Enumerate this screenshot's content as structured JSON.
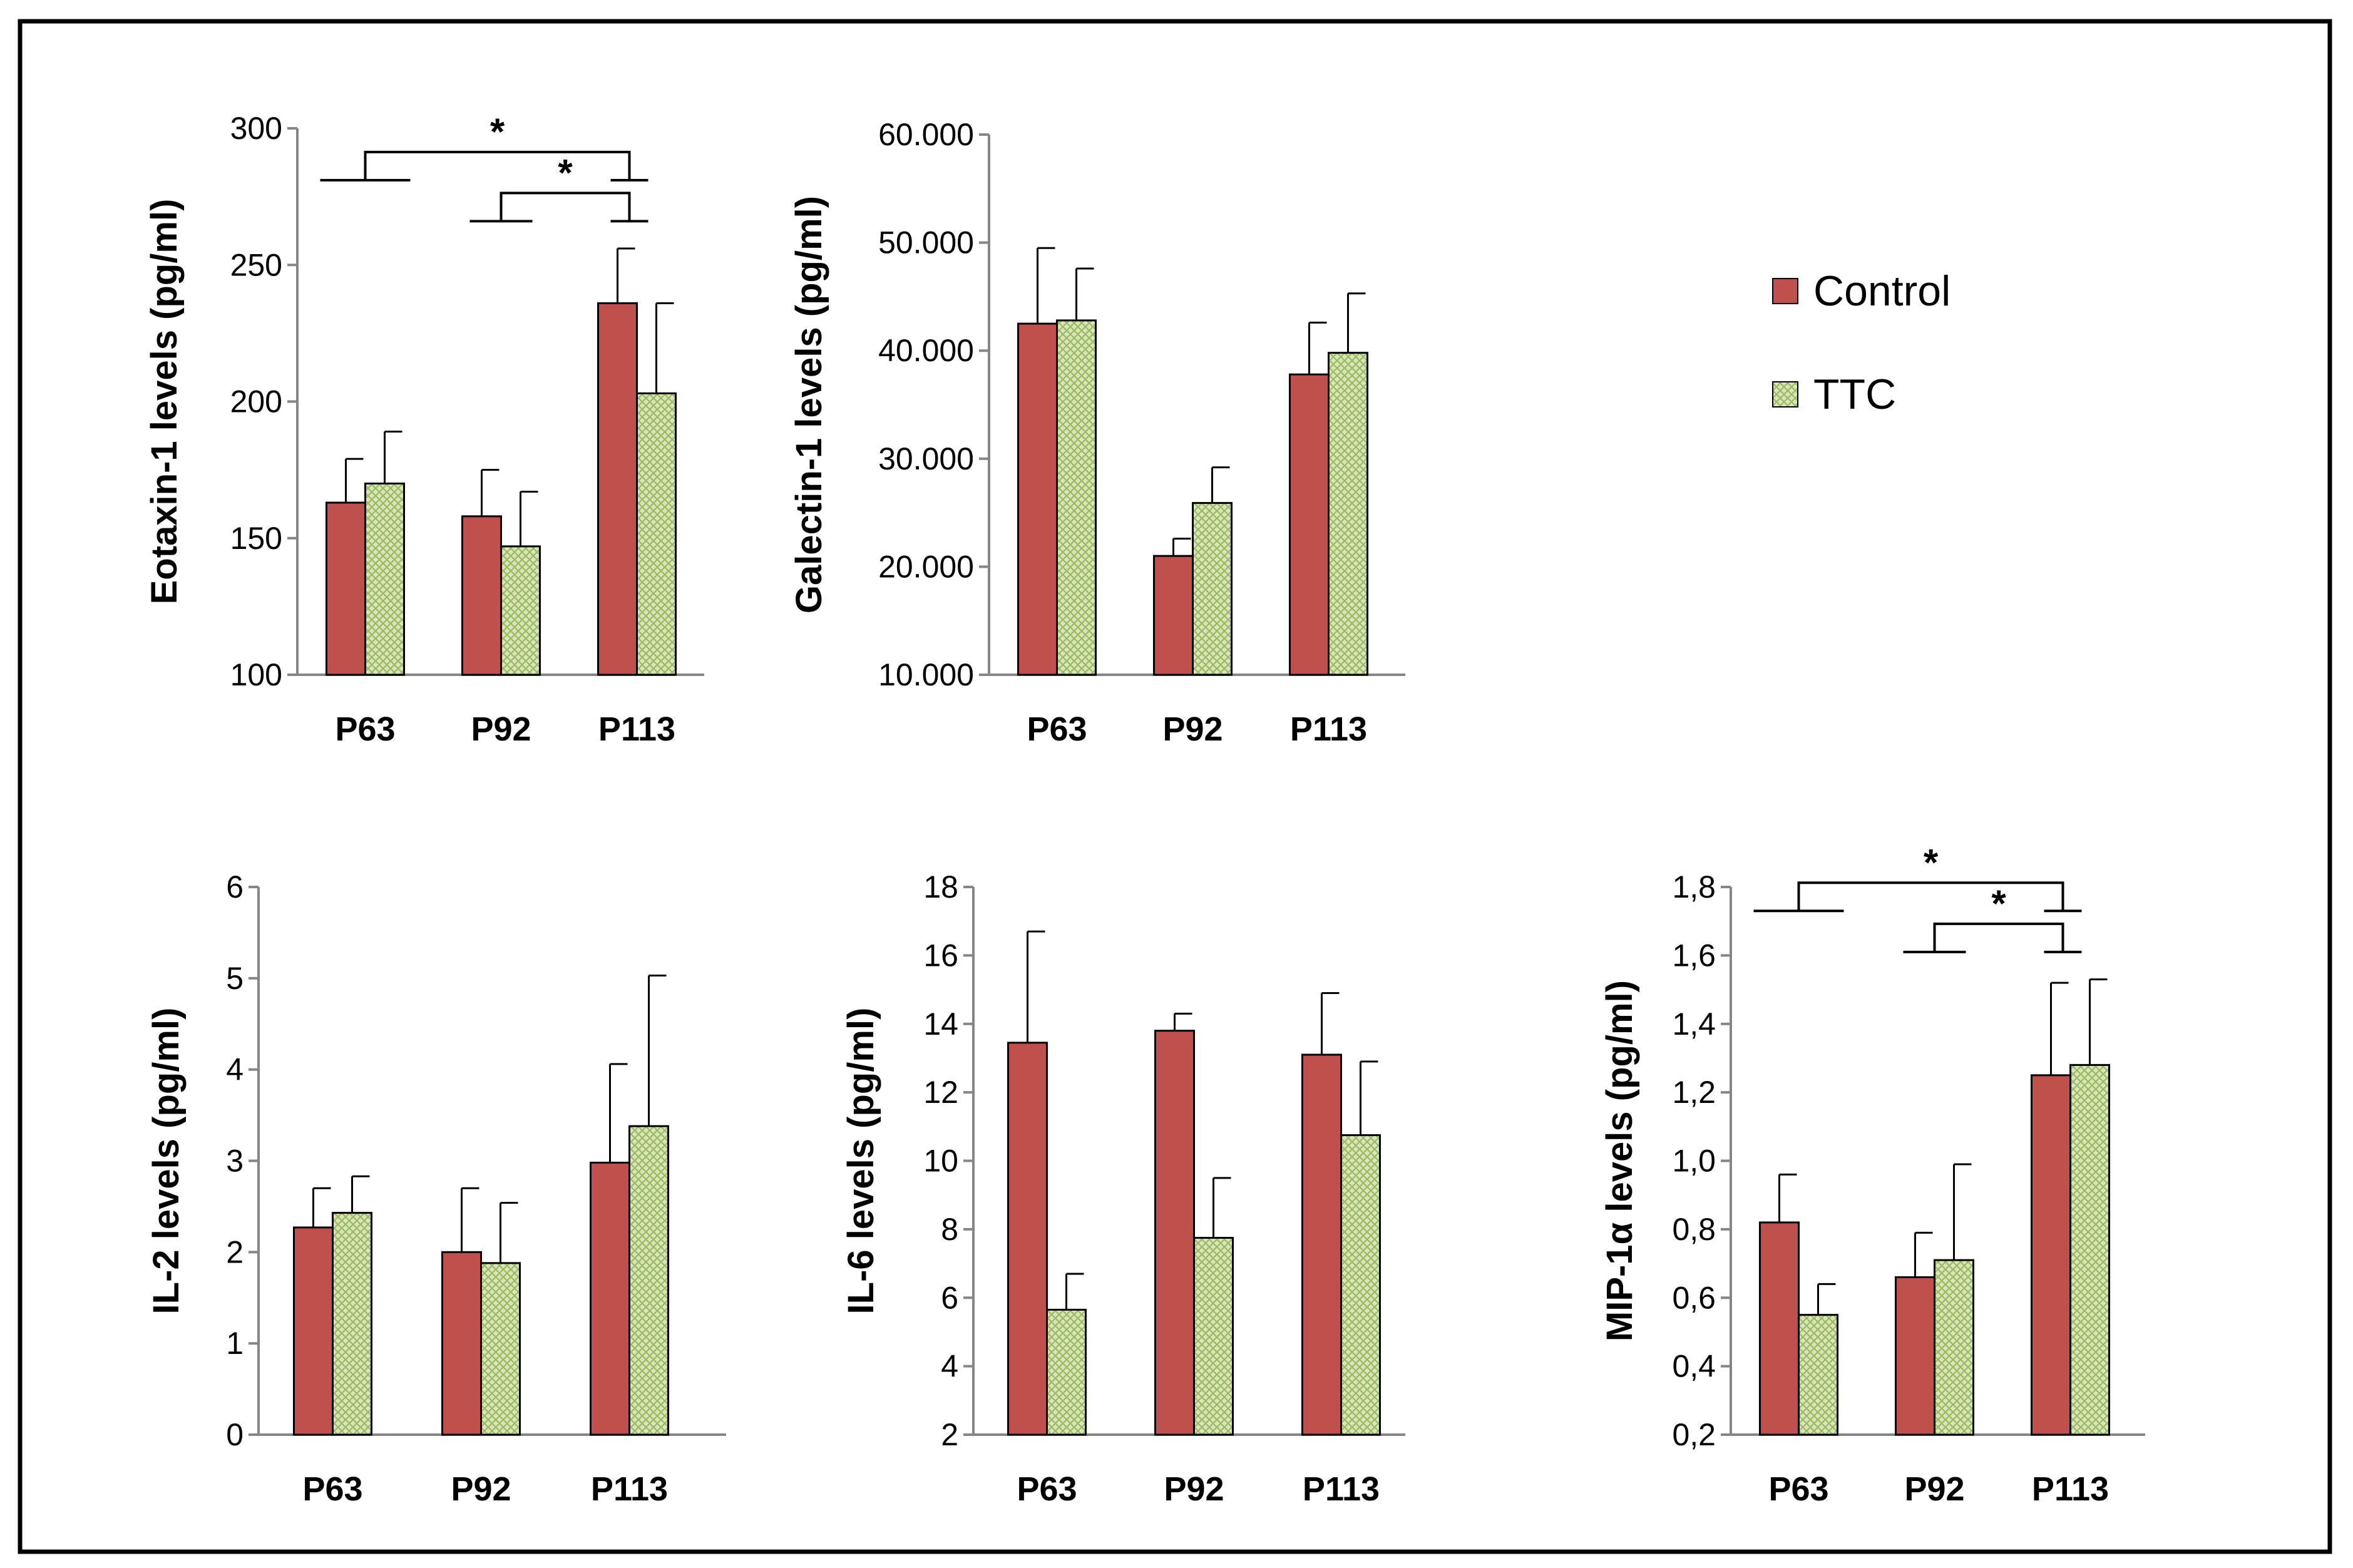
{
  "colors": {
    "control": "#C0504D",
    "ttc_fill": "#D7E4BD",
    "ttc_hatch": "#9BBB59",
    "axis": "#868686",
    "frame": "#000000"
  },
  "legend": {
    "items": [
      {
        "label": "Control",
        "key": "control"
      },
      {
        "label": "TTC",
        "key": "ttc"
      }
    ]
  },
  "chart_data": [
    {
      "type": "bar",
      "ylabel": "Eotaxin-1 levels (pg/ml)",
      "categories": [
        "P63",
        "P92",
        "P113"
      ],
      "ylim": [
        100,
        300
      ],
      "yticks": [
        100,
        150,
        200,
        250,
        300
      ],
      "yticklabels": [
        "100",
        "150",
        "200",
        "250",
        "300"
      ],
      "series": [
        {
          "name": "Control",
          "values": [
            163,
            158,
            236
          ],
          "errors": [
            16,
            17,
            20
          ]
        },
        {
          "name": "TTC",
          "values": [
            170,
            147,
            203
          ],
          "errors": [
            19,
            20,
            33
          ]
        }
      ],
      "significance": [
        {
          "from": "P63",
          "to": "P113",
          "label": "*"
        },
        {
          "from": "P92",
          "to": "P113",
          "label": "*"
        }
      ]
    },
    {
      "type": "bar",
      "ylabel": "Galectin-1 levels (pg/ml)",
      "categories": [
        "P63",
        "P92",
        "P113"
      ],
      "ylim": [
        10000,
        60000
      ],
      "yticks": [
        10000,
        20000,
        30000,
        40000,
        50000,
        60000
      ],
      "yticklabels": [
        "10.000",
        "20.000",
        "30.000",
        "40.000",
        "50.000",
        "60.000"
      ],
      "series": [
        {
          "name": "Control",
          "values": [
            42500,
            21000,
            37800
          ],
          "errors": [
            7000,
            1600,
            4800
          ]
        },
        {
          "name": "TTC",
          "values": [
            42800,
            25900,
            39800
          ],
          "errors": [
            4800,
            3300,
            5500
          ]
        }
      ],
      "significance": []
    },
    {
      "type": "bar",
      "ylabel": "IL-2 levels (pg/ml)",
      "categories": [
        "P63",
        "P92",
        "P113"
      ],
      "ylim": [
        0,
        6
      ],
      "yticks": [
        0,
        1,
        2,
        3,
        4,
        5,
        6
      ],
      "yticklabels": [
        "0",
        "1",
        "2",
        "3",
        "4",
        "5",
        "6"
      ],
      "series": [
        {
          "name": "Control",
          "values": [
            2.27,
            2.0,
            2.98
          ],
          "errors": [
            0.43,
            0.7,
            1.08
          ]
        },
        {
          "name": "TTC",
          "values": [
            2.43,
            1.88,
            3.38
          ],
          "errors": [
            0.4,
            0.66,
            1.65
          ]
        }
      ],
      "significance": []
    },
    {
      "type": "bar",
      "ylabel": "IL-6 levels (pg/ml)",
      "categories": [
        "P63",
        "P92",
        "P113"
      ],
      "ylim": [
        2,
        18
      ],
      "yticks": [
        2,
        4,
        6,
        8,
        10,
        12,
        14,
        16,
        18
      ],
      "yticklabels": [
        "2",
        "4",
        "6",
        "8",
        "10",
        "12",
        "14",
        "16",
        "18"
      ],
      "series": [
        {
          "name": "Control",
          "values": [
            13.45,
            13.8,
            13.1
          ],
          "errors": [
            3.25,
            0.5,
            1.8
          ]
        },
        {
          "name": "TTC",
          "values": [
            5.65,
            7.75,
            10.75
          ],
          "errors": [
            1.05,
            1.75,
            2.15
          ]
        }
      ],
      "significance": []
    },
    {
      "type": "bar",
      "ylabel": "MIP-1α levels (pg/ml)",
      "categories": [
        "P63",
        "P92",
        "P113"
      ],
      "ylim": [
        0.2,
        1.8
      ],
      "yticks": [
        0.2,
        0.4,
        0.6,
        0.8,
        1.0,
        1.2,
        1.4,
        1.6,
        1.8
      ],
      "yticklabels": [
        "0,2",
        "0,4",
        "0,6",
        "0,8",
        "1,0",
        "1,2",
        "1,4",
        "1,6",
        "1,8"
      ],
      "series": [
        {
          "name": "Control",
          "values": [
            0.82,
            0.66,
            1.25
          ],
          "errors": [
            0.14,
            0.13,
            0.27
          ]
        },
        {
          "name": "TTC",
          "values": [
            0.55,
            0.71,
            1.28
          ],
          "errors": [
            0.09,
            0.28,
            0.25
          ]
        }
      ],
      "significance": [
        {
          "from": "P63",
          "to": "P113",
          "label": "*"
        },
        {
          "from": "P92",
          "to": "P113",
          "label": "*"
        }
      ]
    }
  ]
}
